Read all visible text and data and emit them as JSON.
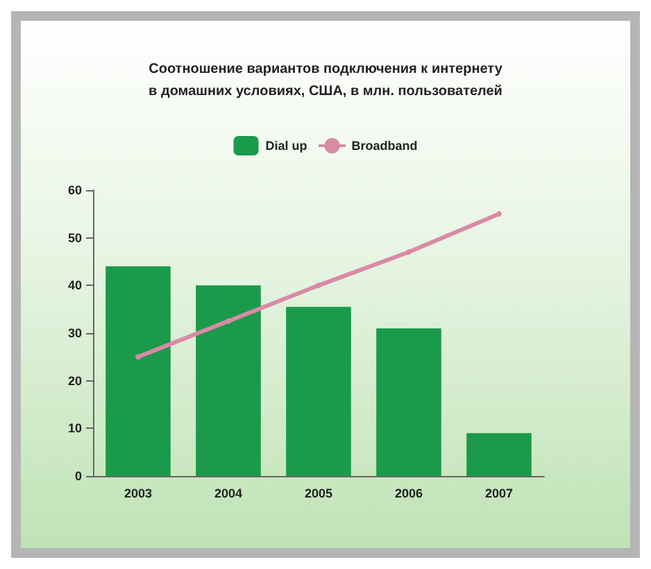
{
  "chart_data": {
    "type": "bar",
    "title": "Соотношение вариантов подключения к интернету\nв домашних условиях, США, в млн. пользователей",
    "categories": [
      "2003",
      "2004",
      "2005",
      "2006",
      "2007"
    ],
    "series": [
      {
        "name": "Dial up",
        "color": "#1a9a4a",
        "values": [
          44,
          40,
          35.5,
          31,
          9
        ]
      },
      {
        "name": "Broadband",
        "type": "line",
        "color": "#d98aa6",
        "values": [
          25,
          32.5,
          40,
          47,
          55
        ]
      }
    ],
    "ylim": [
      0,
      60
    ],
    "yticks": [
      0,
      10,
      20,
      30,
      40,
      50,
      60
    ],
    "grid": false,
    "legend": "top",
    "marker": "circle",
    "line_style": "solid"
  }
}
